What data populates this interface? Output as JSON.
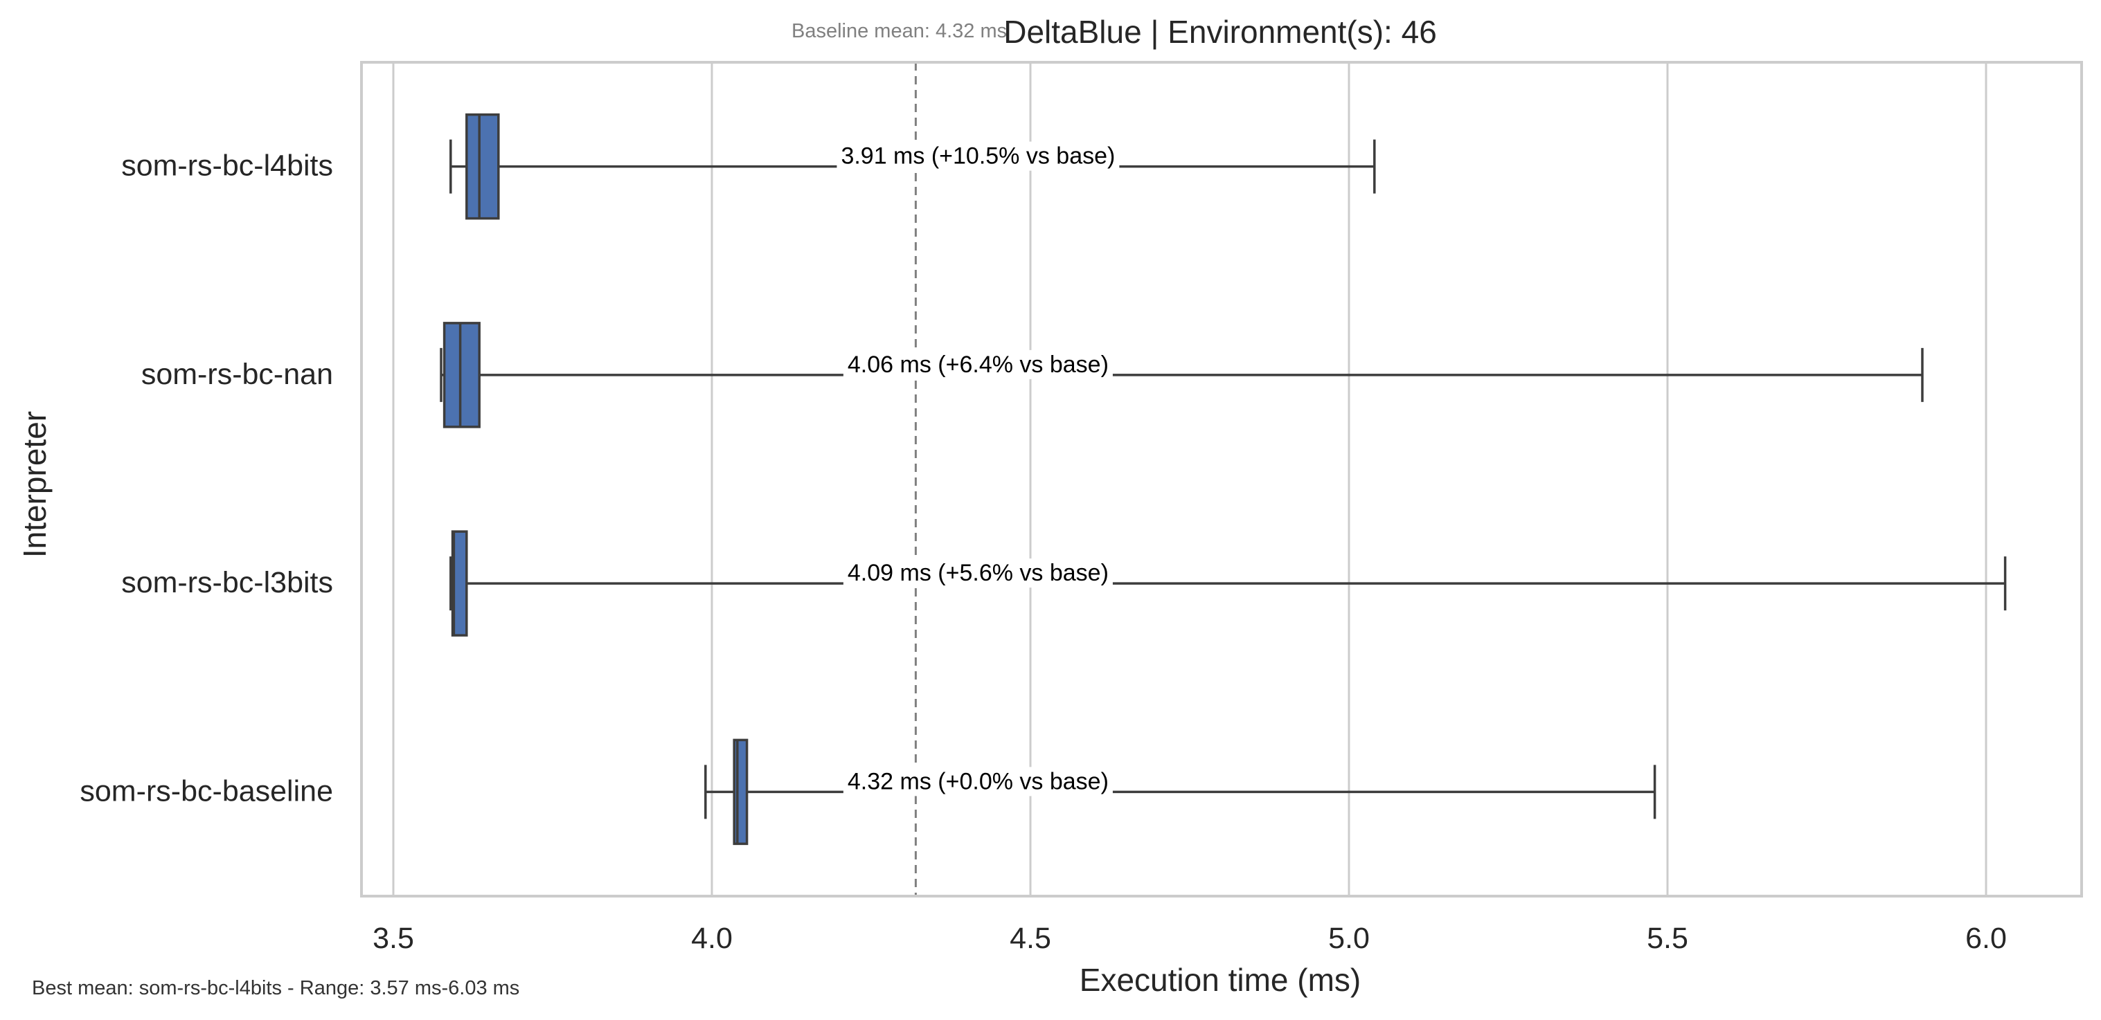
{
  "chart_data": {
    "type": "boxplot",
    "orientation": "horizontal",
    "title": "DeltaBlue | Environment(s): 46",
    "xlabel": "Execution time (ms)",
    "ylabel": "Interpreter",
    "xlim": [
      3.45,
      6.15
    ],
    "xticks": [
      3.5,
      4.0,
      4.5,
      5.0,
      5.5,
      6.0
    ],
    "xtick_labels": [
      "3.5",
      "4.0",
      "4.5",
      "5.0",
      "5.5",
      "6.0"
    ],
    "grid": "vertical",
    "baseline_mean": 4.32,
    "baseline_label": "Baseline mean: 4.32 ms",
    "footer": "Best mean: som-rs-bc-l4bits - Range: 3.57 ms-6.03 ms",
    "box_color": "#4c72b0",
    "series": [
      {
        "category": "som-rs-bc-l4bits",
        "whisker_low": 3.59,
        "q1": 3.615,
        "median": 3.635,
        "q3": 3.665,
        "whisker_high": 5.04,
        "annotation": "3.91 ms  (+10.5% vs base)"
      },
      {
        "category": "som-rs-bc-nan",
        "whisker_low": 3.575,
        "q1": 3.58,
        "median": 3.605,
        "q3": 3.635,
        "whisker_high": 5.9,
        "annotation": "4.06 ms  (+6.4% vs base)"
      },
      {
        "category": "som-rs-bc-l3bits",
        "whisker_low": 3.59,
        "q1": 3.593,
        "median": 3.595,
        "q3": 3.615,
        "whisker_high": 6.03,
        "annotation": "4.09 ms  (+5.6% vs base)"
      },
      {
        "category": "som-rs-bc-baseline",
        "whisker_low": 3.99,
        "q1": 4.035,
        "median": 4.04,
        "q3": 4.055,
        "whisker_high": 5.48,
        "annotation": "4.32 ms  (+0.0% vs base)"
      }
    ]
  }
}
